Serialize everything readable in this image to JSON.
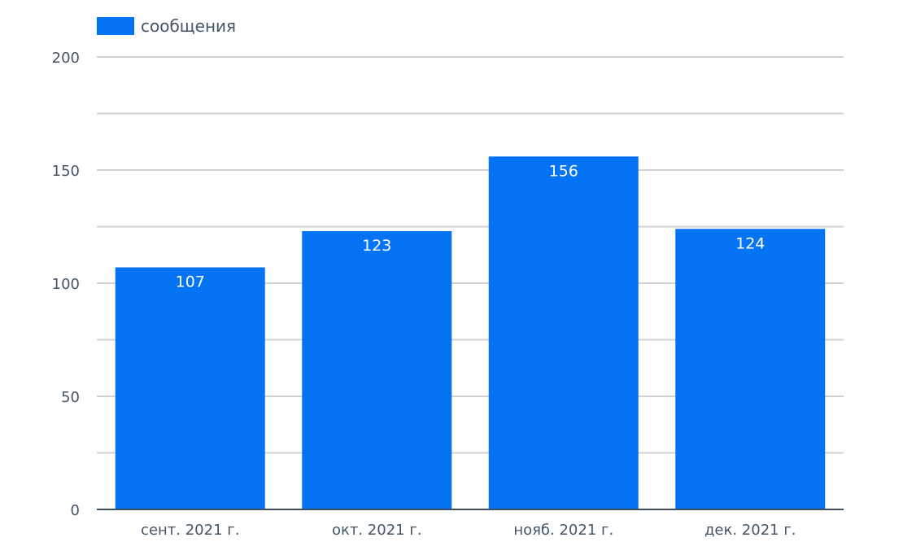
{
  "legend": {
    "label": "сообщения",
    "position": "top-left"
  },
  "colors": {
    "bar": "#0474f5",
    "grid": "#d2d2d2",
    "axis": "#3f4e63",
    "tick_text": "#445566",
    "bar_label": "#ffffff"
  },
  "chart_data": {
    "type": "bar",
    "title": "",
    "xlabel": "",
    "ylabel": "",
    "categories": [
      "сент. 2021 г.",
      "окт. 2021 г.",
      "нояб. 2021 г.",
      "дек. 2021 г."
    ],
    "series": [
      {
        "name": "сообщения",
        "values": [
          107,
          123,
          156,
          124
        ]
      }
    ],
    "ylim": [
      0,
      200
    ],
    "yticks": [
      0,
      50,
      100,
      150,
      200
    ],
    "yticks_labeled": [
      "0",
      "50",
      "100",
      "150",
      "200"
    ],
    "minor_gridlines": [
      25,
      75,
      125,
      175
    ],
    "grid": true,
    "legend_position": "top-left",
    "data_labels": [
      "107",
      "123",
      "156",
      "124"
    ]
  }
}
